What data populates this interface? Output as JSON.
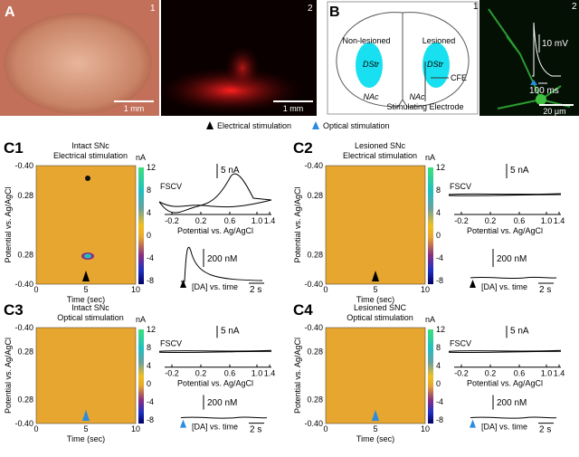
{
  "panel_a": {
    "label": "A",
    "images": [
      {
        "number": "1",
        "scale_bar": "1 mm"
      },
      {
        "number": "2",
        "scale_bar": "1 mm"
      }
    ]
  },
  "panel_b": {
    "label": "B",
    "diagram": {
      "number": "1",
      "left": "Non-lesioned",
      "right": "Lesioned",
      "regions": [
        "DStr",
        "NAc",
        "DStr",
        "NAc"
      ],
      "cfe": "CFE",
      "electrode": "Stimulating Electrode"
    },
    "image": {
      "number": "2",
      "voltage_bar": "10 mV",
      "time_bar": "100 ms",
      "scale_bar": "20 μm"
    }
  },
  "legend": [
    "Electrical stimulation",
    "Optical stimulation"
  ],
  "c_panels": [
    {
      "label": "C1",
      "title": [
        "Intact SNc",
        "Electrical stimulation"
      ],
      "fscv_bar": "5 nA",
      "da_bar": "200 nM",
      "time_bar": "2 s"
    },
    {
      "label": "C2",
      "title": [
        "Lesioned SNc",
        "Electrical stimulation"
      ],
      "fscv_bar": "5 nA",
      "da_bar": "200 nM",
      "time_bar": "2 s"
    },
    {
      "label": "C3",
      "title": [
        "Intact SNc",
        "Optical stimulation"
      ],
      "fscv_bar": "5 nA",
      "da_bar": "200 nM",
      "time_bar": "2 s"
    },
    {
      "label": "C4",
      "title": [
        "Lesioned SNC",
        "Optical stimulation"
      ],
      "fscv_bar": "5 nA",
      "da_bar": "200 nM",
      "time_bar": "2 s"
    }
  ],
  "heatmap": {
    "y_label": "Potential vs. Ag/AgCl",
    "yticks": [
      "-0.40",
      "0.28",
      "0.28",
      "-0.40"
    ],
    "x_label": "Time (sec)",
    "xticks": [
      "0",
      "5",
      "10"
    ]
  },
  "colorbar": {
    "unit": "nA",
    "ticks": [
      "12",
      "8",
      "4",
      "0",
      "-4",
      "-8"
    ]
  },
  "fscv": {
    "label": "FSCV",
    "x_label": "Potential vs. Ag/AgCl",
    "xticks": [
      "-0.2",
      "0.2",
      "0.6",
      "1.0",
      "1.4"
    ]
  },
  "da_trace": {
    "label": "[DA] vs. time"
  }
}
